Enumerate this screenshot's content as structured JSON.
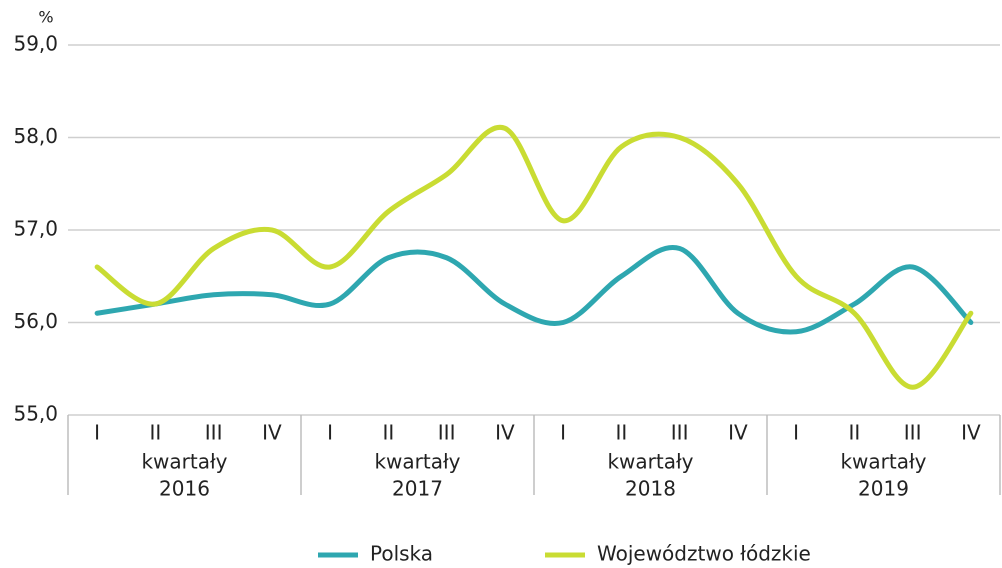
{
  "chart_data": {
    "type": "line",
    "y_unit": "%",
    "categories": [
      "I",
      "II",
      "III",
      "IV",
      "I",
      "II",
      "III",
      "IV",
      "I",
      "II",
      "III",
      "IV",
      "I",
      "II",
      "III",
      "IV"
    ],
    "groups": [
      {
        "label": "kwartały",
        "year": "2016"
      },
      {
        "label": "kwartały",
        "year": "2017"
      },
      {
        "label": "kwartały",
        "year": "2018"
      },
      {
        "label": "kwartały",
        "year": "2019"
      }
    ],
    "series": [
      {
        "name": "Polska",
        "color": "#2ea7b0",
        "values": [
          56.1,
          56.2,
          56.3,
          56.3,
          56.2,
          56.7,
          56.7,
          56.2,
          56.0,
          56.5,
          56.8,
          56.1,
          55.9,
          56.2,
          56.6,
          56.0
        ]
      },
      {
        "name": "Województwo łódzkie",
        "color": "#c9dc33",
        "values": [
          56.6,
          56.2,
          56.8,
          57.0,
          56.6,
          57.2,
          57.6,
          58.1,
          57.1,
          57.9,
          58.0,
          57.5,
          56.5,
          56.1,
          55.3,
          56.1
        ]
      }
    ],
    "ylim": [
      55,
      59
    ],
    "yticks": [
      {
        "value": 55,
        "label": "55,0"
      },
      {
        "value": 56,
        "label": "56,0"
      },
      {
        "value": 57,
        "label": "57,0"
      },
      {
        "value": 58,
        "label": "58,0"
      },
      {
        "value": 59,
        "label": "59,0"
      }
    ],
    "grid": true,
    "legend": "bottom"
  }
}
